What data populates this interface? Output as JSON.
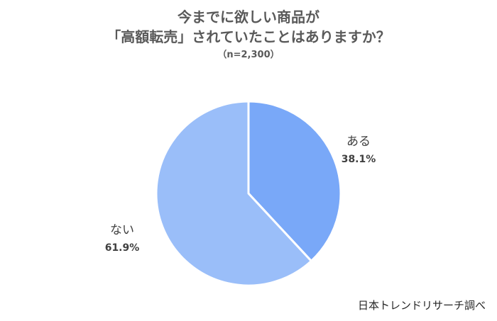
{
  "title_lines": [
    "今までに欲しい商品が",
    "「高額転売」されていたことはありますか？"
  ],
  "subtitle": "（n=2,300）",
  "source": "日本トレンドリサーチ調べ",
  "colors": {
    "slice_aru": "#79A8F8",
    "slice_nai": "#9ABEF9",
    "border": "#ffffff",
    "text": "#404040"
  },
  "chart_data": {
    "type": "pie",
    "title": "今までに欲しい商品が「高額転売」されていたことはありますか？",
    "subtitle": "（n=2,300）",
    "slices": [
      {
        "label": "ある",
        "value": 38.1,
        "value_label": "38.1%"
      },
      {
        "label": "ない",
        "value": 61.9,
        "value_label": "61.9%"
      }
    ],
    "start_angle_deg": 0,
    "direction": "clockwise",
    "legend": "none"
  }
}
